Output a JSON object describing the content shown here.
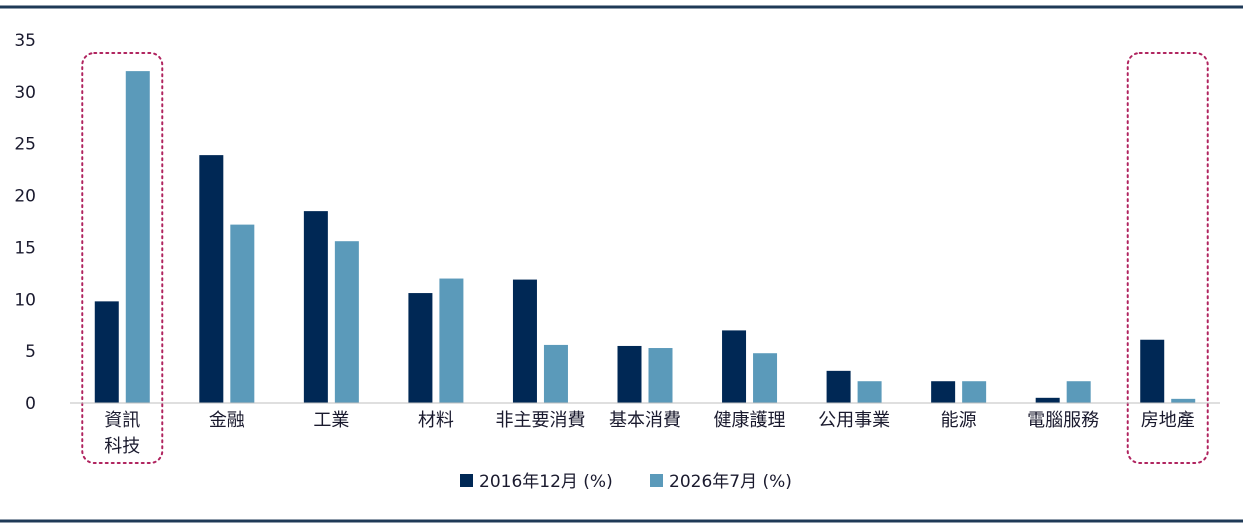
{
  "chart_data": {
    "type": "bar",
    "categories": [
      "資訊\n科技",
      "金融",
      "工業",
      "材料",
      "非主要消費",
      "基本消費",
      "健康護理",
      "公用事業",
      "能源",
      "電腦服務",
      "房地產"
    ],
    "series": [
      {
        "name": "2016年12月 (%)",
        "color": "#002855",
        "values": [
          9.8,
          23.9,
          18.5,
          10.6,
          11.9,
          5.5,
          7.0,
          3.1,
          2.1,
          0.5,
          6.1
        ]
      },
      {
        "name": "2026年7月 (%)",
        "color": "#5b9aba",
        "values": [
          32.0,
          17.2,
          15.6,
          12.0,
          5.6,
          5.3,
          4.8,
          2.1,
          2.1,
          2.1,
          0.4
        ]
      }
    ],
    "ylim": [
      0,
      35
    ],
    "yticks": [
      0,
      5,
      10,
      15,
      20,
      25,
      30,
      35
    ],
    "grid": false,
    "legend_position": "bottom-center",
    "highlighted_categories": [
      0,
      10
    ],
    "highlight_color": "#b0245f",
    "rule_color": "#1f3a57"
  }
}
